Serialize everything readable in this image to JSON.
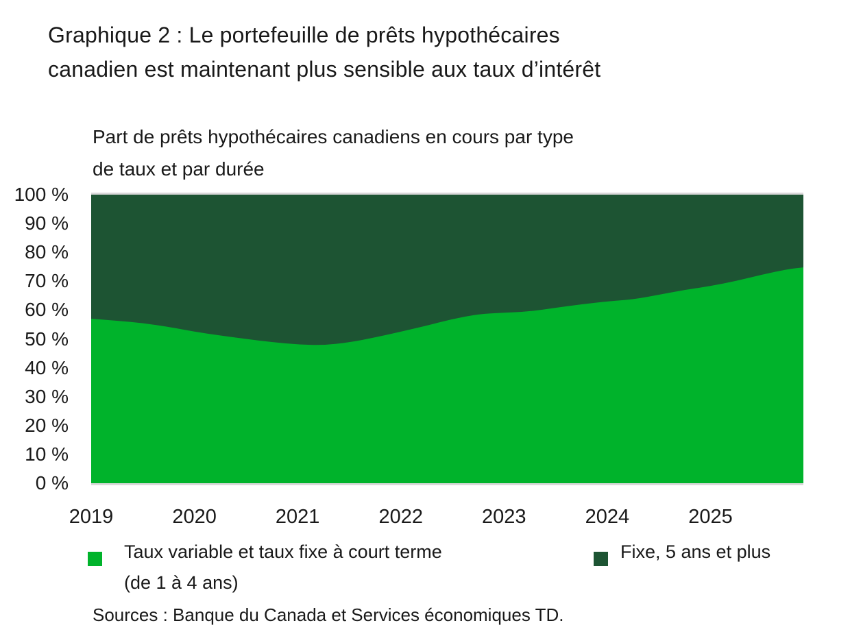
{
  "page": {
    "title_line1": "Graphique 2 : Le portefeuille de prêts hypothécaires",
    "title_line2": "canadien est maintenant plus sensible aux taux d’intérêt",
    "subtitle_line1": "Part de prêts hypothécaires canadiens en cours par type",
    "subtitle_line2": "de taux et par durée",
    "source": "Sources : Banque du Canada et Services économiques TD."
  },
  "chart_data": {
    "type": "area",
    "stacked": true,
    "unit": "%",
    "title": "Part de prêts hypothécaires canadiens en cours par type de taux et par durée",
    "xlabel": "",
    "ylabel": "",
    "x_range": [
      2019,
      2025.9
    ],
    "ylim": [
      0,
      100
    ],
    "yticks": [
      100,
      90,
      80,
      70,
      60,
      50,
      40,
      30,
      20,
      10,
      0
    ],
    "ytick_suffix": " %",
    "xticks": [
      2019,
      2020,
      2021,
      2022,
      2023,
      2024,
      2025
    ],
    "grid": false,
    "legend_position": "bottom",
    "plot_border_color": "#dad8da",
    "x": [
      2019,
      2019.25,
      2019.5,
      2019.75,
      2020,
      2020.25,
      2020.5,
      2020.75,
      2021,
      2021.25,
      2021.5,
      2021.75,
      2022,
      2022.25,
      2022.5,
      2022.75,
      2023,
      2023.25,
      2023.5,
      2023.75,
      2024,
      2024.25,
      2024.5,
      2024.75,
      2025,
      2025.25,
      2025.5,
      2025.75,
      2025.9
    ],
    "series": [
      {
        "name": "Taux variable et taux fixe à court terme (de 1 à 4 ans)",
        "color": "#00b32b",
        "values": [
          57.0,
          56.3,
          55.5,
          54.2,
          52.5,
          51.2,
          50.0,
          48.9,
          48.1,
          47.8,
          48.8,
          50.5,
          52.5,
          54.6,
          56.9,
          58.6,
          59.1,
          59.5,
          60.8,
          62.0,
          63.0,
          63.7,
          65.3,
          67.0,
          68.3,
          70.1,
          72.3,
          74.2,
          74.8
        ]
      },
      {
        "name": "Fixe, 5 ans et plus",
        "color": "#1d5433",
        "values": [
          43.0,
          43.7,
          44.5,
          45.8,
          47.5,
          48.8,
          50.0,
          51.1,
          51.9,
          52.2,
          51.2,
          49.5,
          47.5,
          45.4,
          43.1,
          41.4,
          40.9,
          40.5,
          39.2,
          38.0,
          37.0,
          36.3,
          34.7,
          33.0,
          31.7,
          29.9,
          27.7,
          25.8,
          25.2
        ]
      }
    ],
    "legend": [
      {
        "label_line1": "Taux variable et taux fixe à court terme",
        "label_line2": "(de 1 à 4 ans)",
        "color": "#00b32b"
      },
      {
        "label_line1": "Fixe, 5 ans et plus",
        "label_line2": "",
        "color": "#1d5433"
      }
    ]
  }
}
